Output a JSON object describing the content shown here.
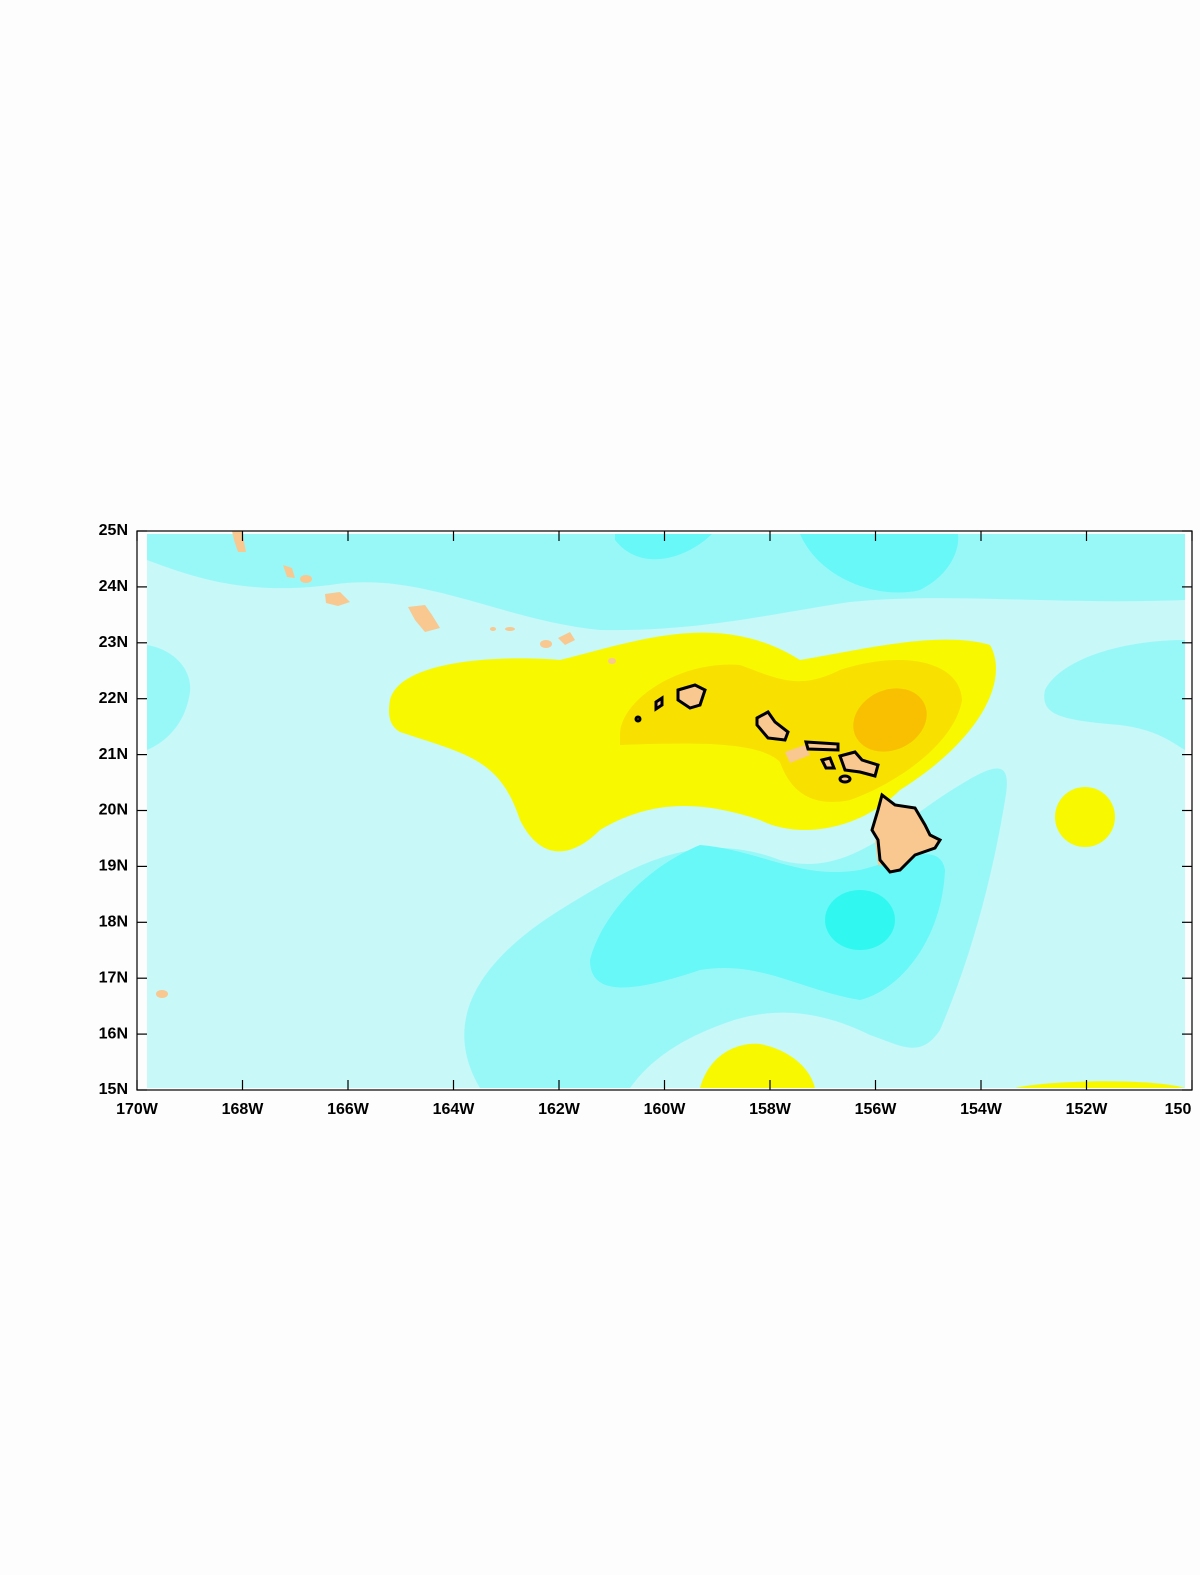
{
  "map": {
    "xlim": [
      -170,
      -150
    ],
    "ylim": [
      15,
      25
    ],
    "xticks": [
      {
        "value": -170,
        "label": "170W"
      },
      {
        "value": -168,
        "label": "168W"
      },
      {
        "value": -166,
        "label": "166W"
      },
      {
        "value": -164,
        "label": "164W"
      },
      {
        "value": -162,
        "label": "162W"
      },
      {
        "value": -160,
        "label": "160W"
      },
      {
        "value": -158,
        "label": "158W"
      },
      {
        "value": -156,
        "label": "156W"
      },
      {
        "value": -154,
        "label": "154W"
      },
      {
        "value": -152,
        "label": "152W"
      },
      {
        "value": -150,
        "label": "150"
      }
    ],
    "yticks": [
      {
        "value": 15,
        "label": "15N"
      },
      {
        "value": 16,
        "label": "16N"
      },
      {
        "value": 17,
        "label": "17N"
      },
      {
        "value": 18,
        "label": "18N"
      },
      {
        "value": 19,
        "label": "19N"
      },
      {
        "value": 20,
        "label": "20N"
      },
      {
        "value": 21,
        "label": "21N"
      },
      {
        "value": 22,
        "label": "22N"
      },
      {
        "value": 23,
        "label": "23N"
      },
      {
        "value": 24,
        "label": "24N"
      },
      {
        "value": 25,
        "label": "25N"
      }
    ]
  }
}
